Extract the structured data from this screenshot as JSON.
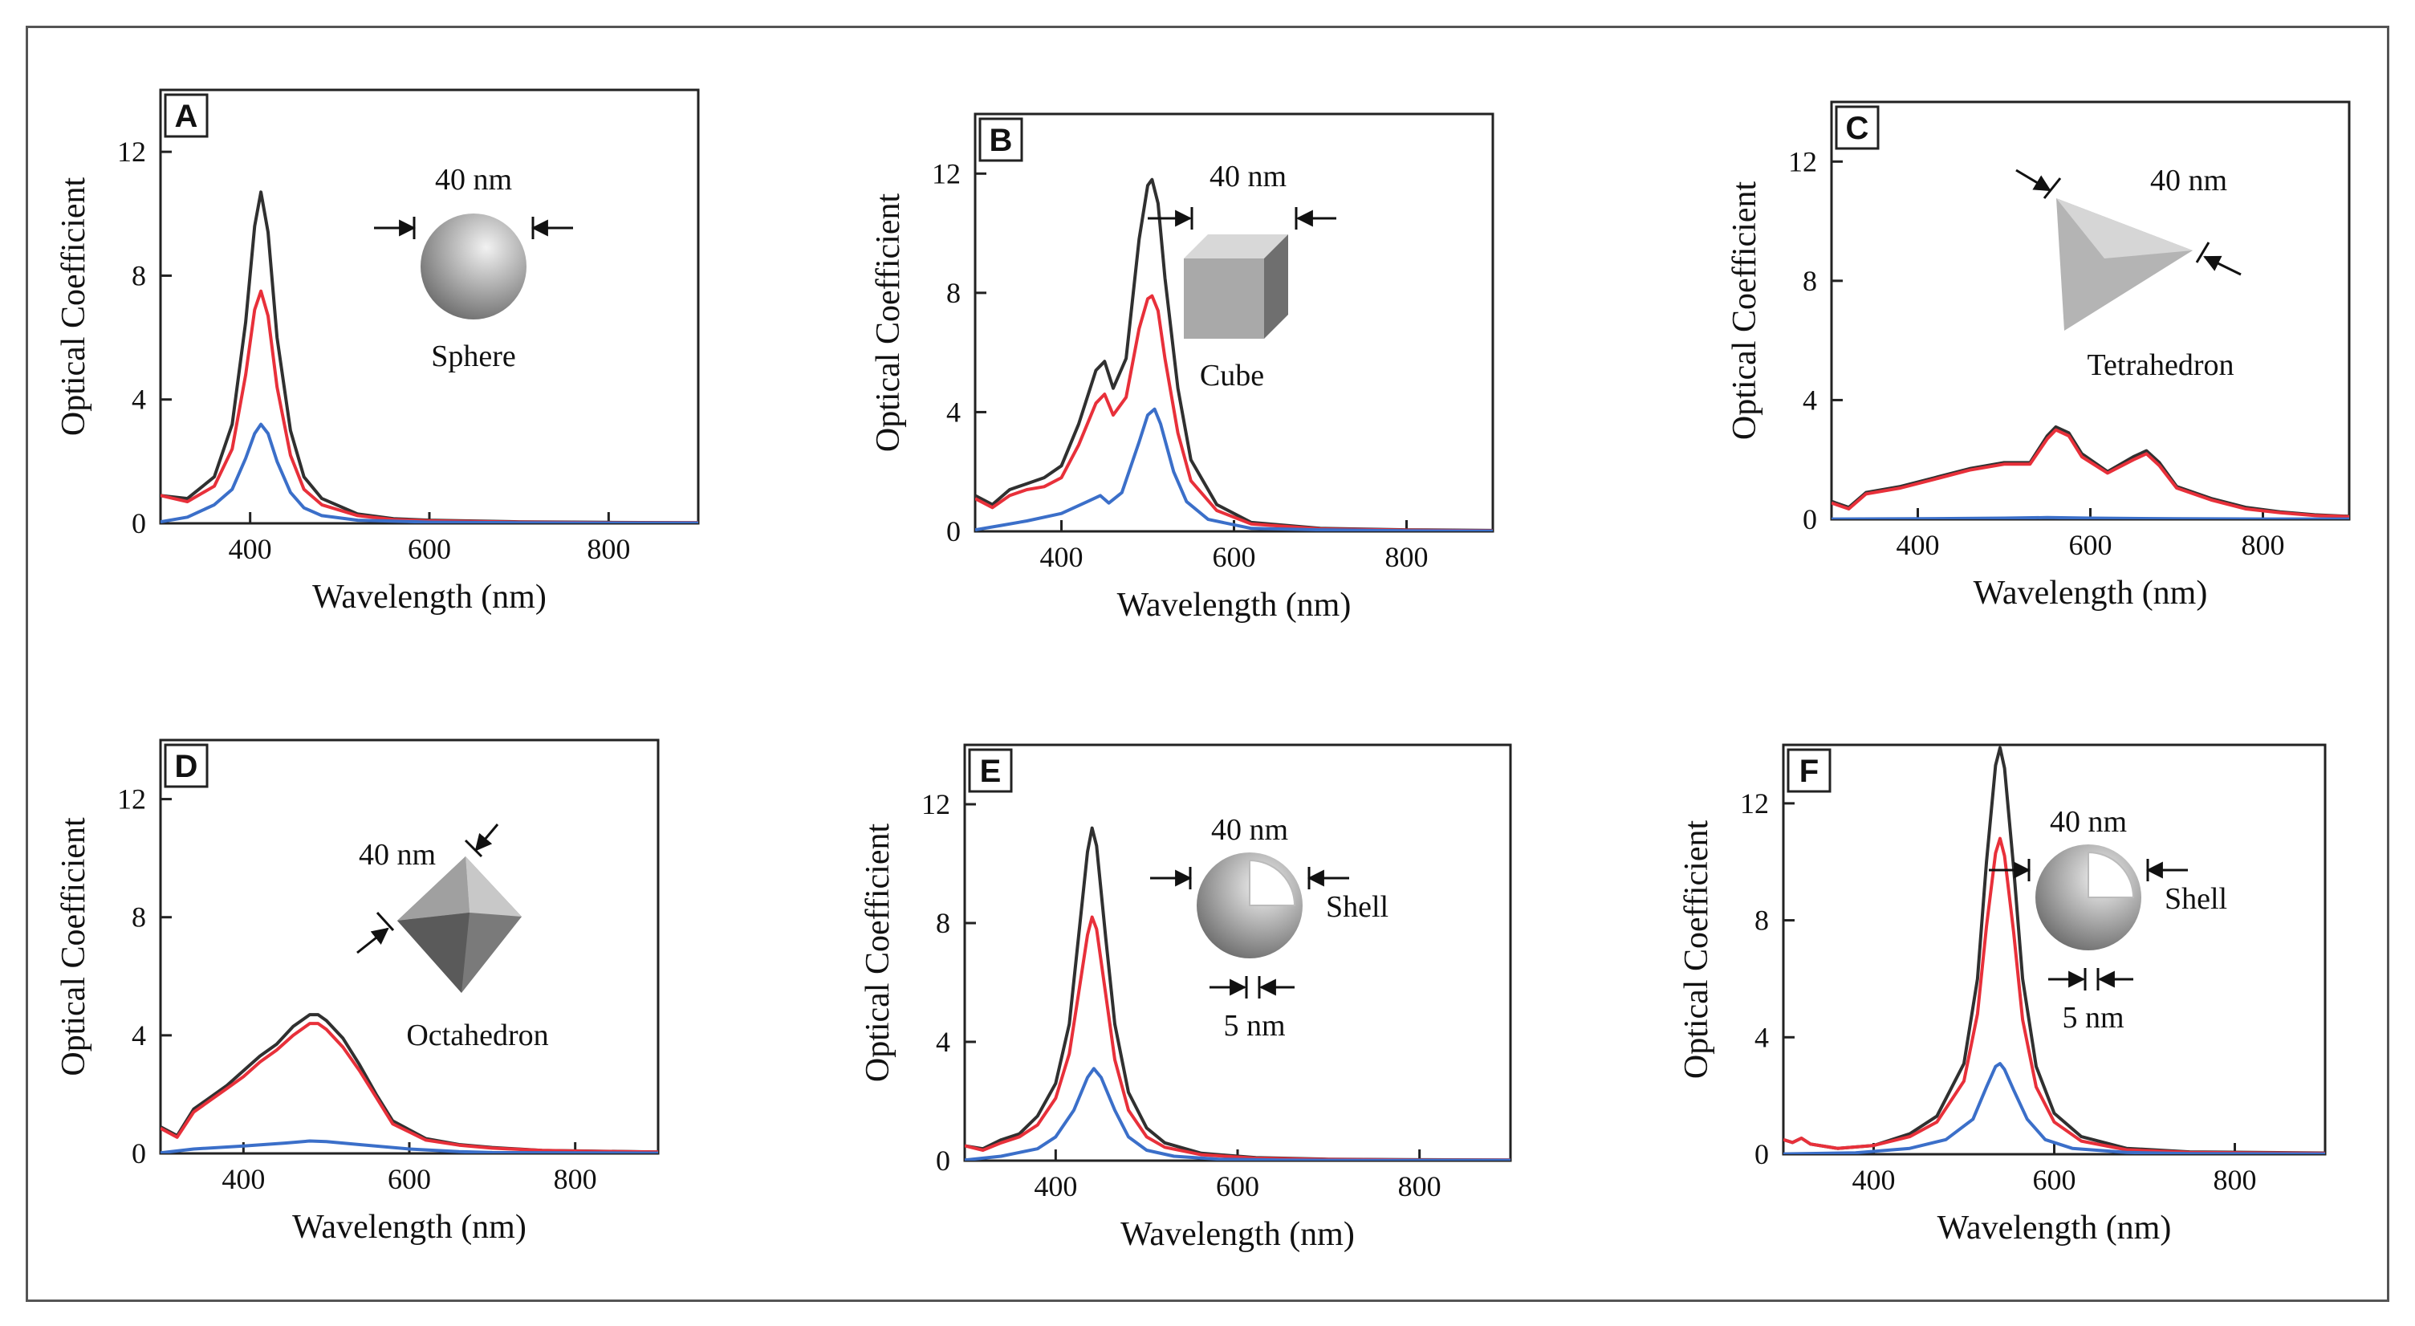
{
  "chart_data": [
    {
      "panel": "A",
      "type": "line",
      "xlabel": "Wavelength (nm)",
      "ylabel": "Optical Coefficient",
      "xlim": [
        300,
        900
      ],
      "ylim": [
        0,
        14
      ],
      "xticks": [
        400,
        600,
        800
      ],
      "yticks": [
        0,
        4,
        8,
        12
      ],
      "inset": {
        "size_label": "40 nm",
        "shape": "Sphere",
        "shape_label": "Sphere"
      },
      "series": [
        {
          "color": "#303030",
          "x": [
            300,
            330,
            360,
            380,
            395,
            405,
            412,
            420,
            430,
            445,
            460,
            480,
            520,
            560,
            600,
            700,
            800,
            900
          ],
          "y": [
            0.9,
            0.8,
            1.5,
            3.2,
            6.5,
            9.6,
            10.7,
            9.4,
            6.0,
            3.0,
            1.5,
            0.8,
            0.3,
            0.15,
            0.1,
            0.05,
            0.03,
            0.02
          ]
        },
        {
          "color": "#e8303a",
          "x": [
            300,
            330,
            360,
            380,
            395,
            405,
            412,
            420,
            430,
            445,
            460,
            480,
            520,
            560,
            600,
            700,
            800,
            900
          ],
          "y": [
            0.9,
            0.7,
            1.2,
            2.4,
            4.8,
            6.9,
            7.5,
            6.7,
            4.4,
            2.2,
            1.1,
            0.6,
            0.25,
            0.12,
            0.08,
            0.04,
            0.02,
            0.02
          ]
        },
        {
          "color": "#3b6fc9",
          "x": [
            300,
            330,
            360,
            380,
            395,
            405,
            412,
            420,
            430,
            445,
            460,
            480,
            520,
            600,
            700,
            800,
            900
          ],
          "y": [
            0.05,
            0.2,
            0.6,
            1.1,
            2.1,
            2.9,
            3.2,
            2.9,
            2.0,
            1.0,
            0.5,
            0.25,
            0.1,
            0.04,
            0.02,
            0.01,
            0.01
          ]
        }
      ]
    },
    {
      "panel": "B",
      "type": "line",
      "xlabel": "Wavelength (nm)",
      "ylabel": "Optical Coefficient",
      "xlim": [
        300,
        900
      ],
      "ylim": [
        0,
        14
      ],
      "xticks": [
        400,
        600,
        800
      ],
      "yticks": [
        0,
        4,
        8,
        12
      ],
      "inset": {
        "size_label": "40 nm",
        "shape": "Cube",
        "shape_label": "Cube"
      },
      "series": [
        {
          "color": "#303030",
          "x": [
            300,
            320,
            340,
            360,
            380,
            400,
            420,
            440,
            450,
            460,
            475,
            490,
            500,
            505,
            512,
            520,
            535,
            550,
            580,
            620,
            700,
            800,
            900
          ],
          "y": [
            1.2,
            0.9,
            1.4,
            1.6,
            1.8,
            2.2,
            3.6,
            5.4,
            5.7,
            4.8,
            5.8,
            9.8,
            11.6,
            11.8,
            11.0,
            8.5,
            4.8,
            2.4,
            0.9,
            0.3,
            0.1,
            0.05,
            0.03
          ]
        },
        {
          "color": "#e8303a",
          "x": [
            300,
            320,
            340,
            360,
            380,
            400,
            420,
            440,
            450,
            460,
            475,
            490,
            500,
            505,
            512,
            520,
            535,
            550,
            580,
            620,
            700,
            800,
            900
          ],
          "y": [
            1.1,
            0.8,
            1.2,
            1.4,
            1.5,
            1.8,
            2.9,
            4.3,
            4.6,
            3.9,
            4.5,
            6.8,
            7.8,
            7.9,
            7.4,
            5.8,
            3.3,
            1.7,
            0.7,
            0.25,
            0.08,
            0.04,
            0.02
          ]
        },
        {
          "color": "#3b6fc9",
          "x": [
            300,
            330,
            360,
            400,
            430,
            445,
            455,
            470,
            490,
            500,
            508,
            515,
            530,
            545,
            570,
            620,
            700,
            800,
            900
          ],
          "y": [
            0.05,
            0.2,
            0.35,
            0.6,
            1.0,
            1.2,
            0.95,
            1.3,
            3.0,
            3.9,
            4.1,
            3.6,
            2.0,
            1.0,
            0.4,
            0.1,
            0.05,
            0.02,
            0.01
          ]
        }
      ]
    },
    {
      "panel": "C",
      "type": "line",
      "xlabel": "Wavelength (nm)",
      "ylabel": "Optical Coefficient",
      "xlim": [
        300,
        900
      ],
      "ylim": [
        0,
        14
      ],
      "xticks": [
        400,
        600,
        800
      ],
      "yticks": [
        0,
        4,
        8,
        12
      ],
      "inset": {
        "size_label": "40 nm",
        "shape": "Tetrahedron",
        "shape_label": "Tetrahedron"
      },
      "series": [
        {
          "color": "#303030",
          "x": [
            300,
            320,
            340,
            380,
            420,
            460,
            500,
            530,
            550,
            560,
            575,
            590,
            620,
            650,
            665,
            680,
            700,
            740,
            780,
            820,
            860,
            900
          ],
          "y": [
            0.6,
            0.4,
            0.9,
            1.1,
            1.4,
            1.7,
            1.9,
            1.9,
            2.8,
            3.1,
            2.9,
            2.2,
            1.6,
            2.1,
            2.3,
            1.9,
            1.1,
            0.7,
            0.4,
            0.25,
            0.15,
            0.1
          ]
        },
        {
          "color": "#e8303a",
          "x": [
            300,
            320,
            340,
            380,
            420,
            460,
            500,
            530,
            550,
            560,
            575,
            590,
            620,
            650,
            665,
            680,
            700,
            740,
            780,
            820,
            860,
            900
          ],
          "y": [
            0.55,
            0.35,
            0.85,
            1.05,
            1.35,
            1.65,
            1.85,
            1.85,
            2.7,
            3.0,
            2.8,
            2.1,
            1.55,
            2.0,
            2.2,
            1.8,
            1.05,
            0.65,
            0.35,
            0.22,
            0.13,
            0.09
          ]
        },
        {
          "color": "#3b6fc9",
          "x": [
            300,
            400,
            500,
            550,
            600,
            700,
            800,
            900
          ],
          "y": [
            0.01,
            0.02,
            0.04,
            0.06,
            0.04,
            0.02,
            0.01,
            0.01
          ]
        }
      ]
    },
    {
      "panel": "D",
      "type": "line",
      "xlabel": "Wavelength (nm)",
      "ylabel": "Optical Coefficient",
      "xlim": [
        300,
        900
      ],
      "ylim": [
        0,
        14
      ],
      "xticks": [
        400,
        600,
        800
      ],
      "yticks": [
        0,
        4,
        8,
        12
      ],
      "inset": {
        "size_label": "40 nm",
        "shape": "Octahedron",
        "shape_label": "Octahedron"
      },
      "series": [
        {
          "color": "#303030",
          "x": [
            300,
            320,
            340,
            360,
            380,
            400,
            420,
            440,
            460,
            480,
            490,
            500,
            520,
            540,
            560,
            580,
            620,
            660,
            700,
            760,
            820,
            900
          ],
          "y": [
            0.9,
            0.6,
            1.5,
            1.9,
            2.3,
            2.8,
            3.3,
            3.7,
            4.3,
            4.7,
            4.7,
            4.5,
            3.9,
            3.0,
            2.0,
            1.1,
            0.5,
            0.3,
            0.2,
            0.1,
            0.08,
            0.05
          ]
        },
        {
          "color": "#e8303a",
          "x": [
            300,
            320,
            340,
            360,
            380,
            400,
            420,
            440,
            460,
            480,
            490,
            500,
            520,
            540,
            560,
            580,
            620,
            660,
            700,
            760,
            820,
            900
          ],
          "y": [
            0.85,
            0.55,
            1.4,
            1.8,
            2.2,
            2.6,
            3.1,
            3.5,
            4.0,
            4.4,
            4.4,
            4.2,
            3.6,
            2.8,
            1.9,
            1.0,
            0.45,
            0.28,
            0.18,
            0.1,
            0.07,
            0.05
          ]
        },
        {
          "color": "#3b6fc9",
          "x": [
            300,
            340,
            400,
            450,
            480,
            500,
            540,
            600,
            660,
            700,
            800,
            900
          ],
          "y": [
            0.02,
            0.15,
            0.25,
            0.35,
            0.42,
            0.4,
            0.3,
            0.15,
            0.06,
            0.03,
            0.02,
            0.01
          ]
        }
      ]
    },
    {
      "panel": "E",
      "type": "line",
      "xlabel": "Wavelength (nm)",
      "ylabel": "Optical Coefficient",
      "xlim": [
        300,
        900
      ],
      "ylim": [
        0,
        14
      ],
      "xticks": [
        400,
        600,
        800
      ],
      "yticks": [
        0,
        4,
        8,
        12
      ],
      "inset": {
        "size_label": "40 nm",
        "shape": "Shell",
        "shape_label": "Shell",
        "shell_label": "5 nm"
      },
      "series": [
        {
          "color": "#303030",
          "x": [
            300,
            320,
            340,
            360,
            380,
            400,
            415,
            425,
            435,
            440,
            445,
            455,
            465,
            480,
            500,
            520,
            560,
            620,
            700,
            800,
            900
          ],
          "y": [
            0.5,
            0.4,
            0.7,
            0.9,
            1.5,
            2.6,
            4.6,
            7.5,
            10.4,
            11.2,
            10.6,
            7.5,
            4.6,
            2.3,
            1.1,
            0.6,
            0.25,
            0.1,
            0.05,
            0.03,
            0.02
          ]
        },
        {
          "color": "#e8303a",
          "x": [
            300,
            320,
            340,
            360,
            380,
            400,
            415,
            425,
            435,
            440,
            445,
            455,
            465,
            480,
            500,
            520,
            560,
            620,
            700,
            800,
            900
          ],
          "y": [
            0.5,
            0.35,
            0.6,
            0.8,
            1.2,
            2.1,
            3.6,
            5.6,
            7.6,
            8.2,
            7.8,
            5.6,
            3.4,
            1.7,
            0.8,
            0.45,
            0.2,
            0.08,
            0.04,
            0.02,
            0.02
          ]
        },
        {
          "color": "#3b6fc9",
          "x": [
            300,
            340,
            380,
            400,
            420,
            435,
            442,
            450,
            465,
            480,
            500,
            530,
            580,
            650,
            750,
            900
          ],
          "y": [
            0.02,
            0.15,
            0.4,
            0.8,
            1.7,
            2.8,
            3.1,
            2.8,
            1.7,
            0.8,
            0.35,
            0.15,
            0.05,
            0.02,
            0.01,
            0.01
          ]
        }
      ]
    },
    {
      "panel": "F",
      "type": "line",
      "xlabel": "Wavelength (nm)",
      "ylabel": "Optical Coefficient",
      "xlim": [
        300,
        900
      ],
      "ylim": [
        0,
        14
      ],
      "xticks": [
        400,
        600,
        800
      ],
      "yticks": [
        0,
        4,
        8,
        12
      ],
      "inset": {
        "size_label": "40 nm",
        "shape": "Shell",
        "shape_label": "Shell",
        "shell_label": "5 nm"
      },
      "series": [
        {
          "color": "#303030",
          "x": [
            300,
            310,
            320,
            330,
            340,
            360,
            400,
            440,
            470,
            500,
            515,
            525,
            535,
            540,
            545,
            555,
            565,
            580,
            600,
            630,
            680,
            750,
            900
          ],
          "y": [
            0.5,
            0.4,
            0.55,
            0.35,
            0.3,
            0.2,
            0.3,
            0.7,
            1.3,
            3.1,
            6.0,
            10.0,
            13.3,
            13.9,
            13.2,
            9.8,
            6.0,
            3.0,
            1.4,
            0.6,
            0.2,
            0.08,
            0.04
          ]
        },
        {
          "color": "#e8303a",
          "x": [
            300,
            310,
            320,
            330,
            340,
            360,
            400,
            440,
            470,
            500,
            515,
            525,
            535,
            540,
            545,
            555,
            565,
            580,
            600,
            630,
            680,
            750,
            900
          ],
          "y": [
            0.5,
            0.4,
            0.55,
            0.35,
            0.3,
            0.2,
            0.3,
            0.6,
            1.1,
            2.5,
            4.8,
            7.8,
            10.3,
            10.8,
            10.2,
            7.6,
            4.6,
            2.3,
            1.1,
            0.45,
            0.15,
            0.06,
            0.03
          ]
        },
        {
          "color": "#3b6fc9",
          "x": [
            300,
            380,
            440,
            480,
            510,
            525,
            535,
            540,
            545,
            555,
            570,
            590,
            620,
            680,
            750,
            900
          ],
          "y": [
            0.01,
            0.05,
            0.2,
            0.5,
            1.2,
            2.3,
            3.0,
            3.1,
            2.9,
            2.2,
            1.2,
            0.5,
            0.2,
            0.06,
            0.02,
            0.01
          ]
        }
      ]
    }
  ]
}
